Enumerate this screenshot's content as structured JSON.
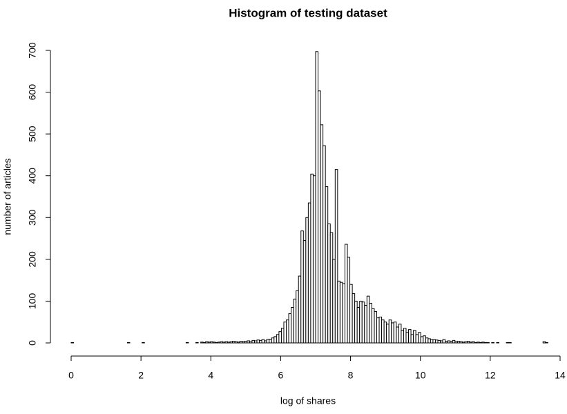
{
  "chart_data": {
    "type": "histogram",
    "title": "Histogram of testing dataset",
    "x_label": "log of shares",
    "y_label": "number of articles",
    "bins": [
      0,
      0.07,
      0.14,
      0.21,
      0.28,
      0.35,
      0.42,
      0.49,
      0.56,
      0.63,
      0.7,
      0.77,
      0.84,
      0.91,
      0.98,
      1.05,
      1.12,
      1.19,
      1.26,
      1.33,
      1.4,
      1.47,
      1.54,
      1.61,
      1.68,
      1.75,
      1.82,
      1.89,
      1.96,
      2.03,
      2.1,
      2.17,
      2.24,
      2.31,
      2.38,
      2.45,
      2.52,
      2.59,
      2.66,
      2.73,
      2.8,
      2.87,
      2.94,
      3.01,
      3.08,
      3.15,
      3.22,
      3.29,
      3.36,
      3.43,
      3.5,
      3.57,
      3.64,
      3.71,
      3.78,
      3.85,
      3.92,
      3.99,
      4.06,
      4.13,
      4.2,
      4.27,
      4.34,
      4.41,
      4.48,
      4.55,
      4.62,
      4.69,
      4.76,
      4.83,
      4.9,
      4.97,
      5.04,
      5.11,
      5.18,
      5.25,
      5.32,
      5.39,
      5.46,
      5.53,
      5.6,
      5.67,
      5.74,
      5.81,
      5.88,
      5.95,
      6.02,
      6.09,
      6.16,
      6.23,
      6.3,
      6.37,
      6.44,
      6.51,
      6.58,
      6.65,
      6.72,
      6.79,
      6.86,
      6.93,
      7,
      7.07,
      7.14,
      7.21,
      7.28,
      7.35,
      7.42,
      7.49,
      7.56,
      7.63,
      7.7,
      7.77,
      7.84,
      7.91,
      7.98,
      8.05,
      8.12,
      8.19,
      8.26,
      8.33,
      8.4,
      8.47,
      8.54,
      8.61,
      8.68,
      8.75,
      8.82,
      8.89,
      8.96,
      9.03,
      9.1,
      9.17,
      9.24,
      9.31,
      9.38,
      9.45,
      9.52,
      9.59,
      9.66,
      9.73,
      9.8,
      9.87,
      9.94,
      10.01,
      10.08,
      10.15,
      10.22,
      10.29,
      10.36,
      10.43,
      10.5,
      10.57,
      10.64,
      10.71,
      10.78,
      10.85,
      10.92,
      10.99,
      11.06,
      11.13,
      11.2,
      11.27,
      11.34,
      11.41,
      11.48,
      11.55,
      11.62,
      11.69,
      11.76,
      11.83,
      11.9,
      11.97,
      12.04,
      12.11,
      12.18,
      12.25,
      12.32,
      12.39,
      12.46,
      12.53,
      12.6,
      12.67,
      12.74,
      12.81,
      12.88,
      12.95,
      13.02,
      13.09,
      13.16,
      13.23,
      13.3,
      13.37,
      13.44,
      13.51,
      13.58,
      13.65
    ],
    "values": [
      1,
      0,
      0,
      0,
      0,
      0,
      0,
      0,
      0,
      0,
      0,
      0,
      0,
      0,
      0,
      0,
      0,
      0,
      0,
      0,
      0,
      0,
      0,
      1,
      0,
      0,
      0,
      0,
      0,
      1,
      0,
      0,
      0,
      0,
      0,
      0,
      0,
      0,
      0,
      0,
      0,
      0,
      0,
      0,
      0,
      0,
      0,
      1,
      0,
      0,
      0,
      1,
      0,
      2,
      1,
      3,
      2,
      3,
      2,
      1,
      2,
      3,
      2,
      3,
      2,
      3,
      4,
      3,
      2,
      4,
      3,
      4,
      5,
      3,
      6,
      5,
      7,
      6,
      8,
      5,
      9,
      8,
      12,
      15,
      20,
      27,
      35,
      50,
      55,
      70,
      85,
      105,
      125,
      160,
      268,
      245,
      300,
      335,
      404,
      400,
      697,
      603,
      522,
      472,
      374,
      285,
      264,
      200,
      415,
      148,
      145,
      142,
      236,
      205,
      140,
      118,
      100,
      85,
      100,
      98,
      90,
      112,
      95,
      82,
      75,
      60,
      62,
      55,
      50,
      45,
      55,
      48,
      50,
      38,
      45,
      30,
      35,
      25,
      32,
      20,
      30,
      20,
      25,
      15,
      17,
      12,
      10,
      8,
      8,
      7,
      6,
      5,
      8,
      4,
      5,
      4,
      6,
      3,
      4,
      3,
      2,
      3,
      4,
      2,
      3,
      1,
      2,
      1,
      2,
      1,
      1,
      0,
      1,
      0,
      1,
      0,
      0,
      0,
      1,
      1,
      0,
      0,
      0,
      0,
      0,
      0,
      0,
      0,
      0,
      0,
      0,
      0,
      0,
      3,
      1
    ],
    "color": "#ffffff",
    "edge_color": "#000000",
    "xlim": [
      0,
      14
    ],
    "xticks": [
      0,
      2,
      4,
      6,
      8,
      10,
      12,
      14
    ],
    "ylim": [
      0,
      700
    ],
    "yticks": [
      0,
      100,
      200,
      300,
      400,
      500,
      600,
      700
    ]
  }
}
